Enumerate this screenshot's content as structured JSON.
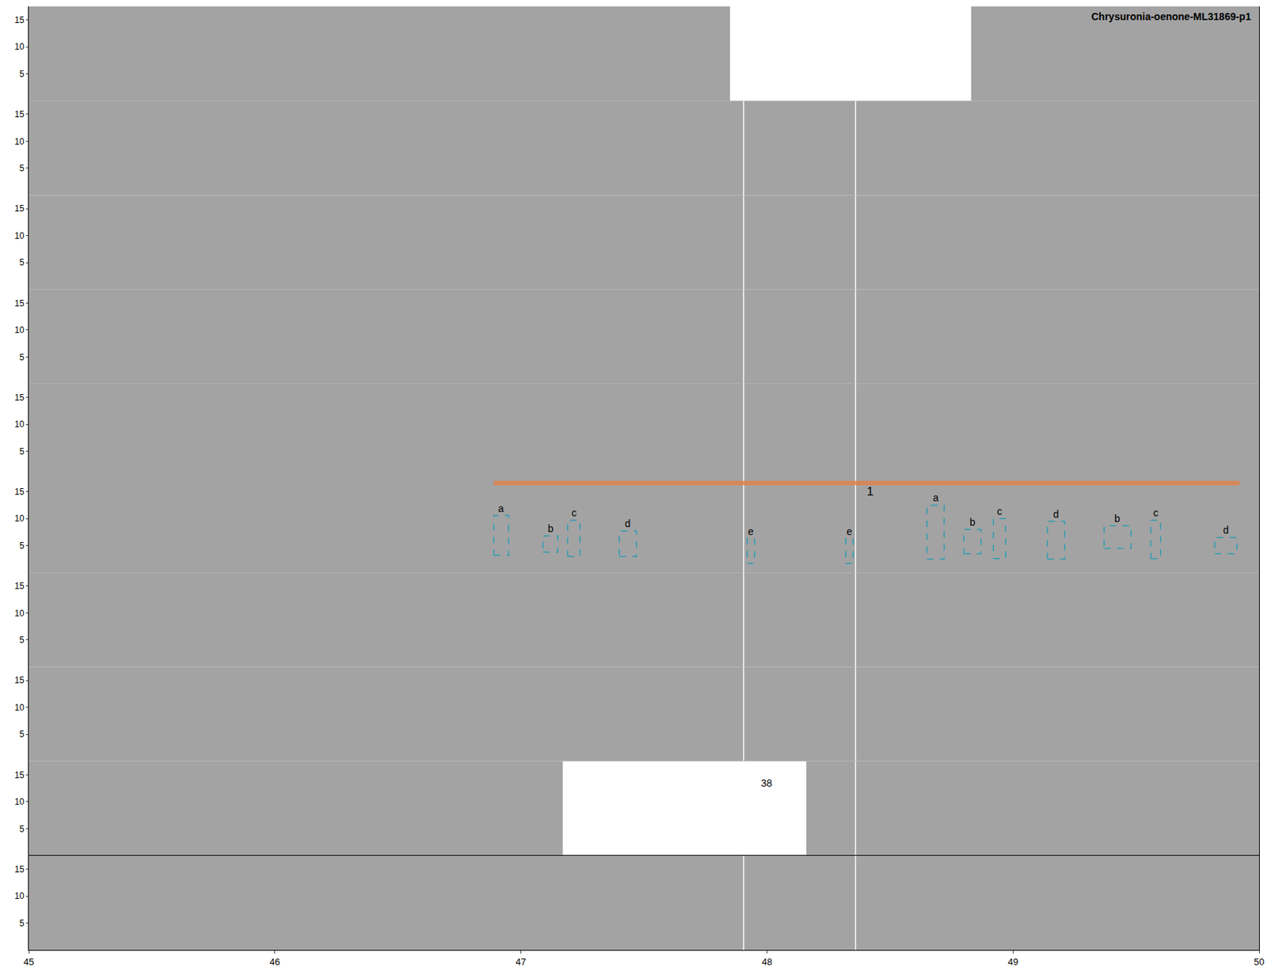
{
  "chart_data": {
    "type": "spectrogram",
    "title": "Chrysuronia-oenone-ML31869-p1",
    "xlim": [
      45,
      50
    ],
    "xticks": [
      45,
      46,
      47,
      48,
      49,
      50
    ],
    "ylim": [
      0,
      17.5
    ],
    "yticks": [
      5,
      10,
      15
    ],
    "grid": false,
    "panels": [
      {
        "separators": [],
        "gaps": [
          [
            47.85,
            48.83
          ]
        ],
        "boxes": [],
        "segments": [],
        "texts": []
      },
      {
        "separators": [
          47.905,
          48.36
        ],
        "gaps": [],
        "boxes": [],
        "segments": [],
        "texts": []
      },
      {
        "separators": [
          47.905,
          48.36
        ],
        "gaps": [],
        "boxes": [],
        "segments": [],
        "texts": []
      },
      {
        "separators": [
          47.905,
          48.36
        ],
        "gaps": [],
        "boxes": [],
        "segments": [],
        "texts": []
      },
      {
        "separators": [
          47.905,
          48.36
        ],
        "gaps": [],
        "boxes": [],
        "segments": [],
        "texts": []
      },
      {
        "separators": [
          47.905,
          48.36
        ],
        "gaps": [],
        "boxes": [
          {
            "label": "a",
            "x": [
              46.89,
              46.95
            ],
            "y": [
              3.2,
              10.6
            ]
          },
          {
            "label": "b",
            "x": [
              47.09,
              47.15
            ],
            "y": [
              3.8,
              6.8
            ]
          },
          {
            "label": "c",
            "x": [
              47.19,
              47.24
            ],
            "y": [
              3.0,
              9.7
            ]
          },
          {
            "label": "d",
            "x": [
              47.4,
              47.47
            ],
            "y": [
              3.0,
              7.7
            ]
          },
          {
            "label": "e",
            "x": [
              47.92,
              47.95
            ],
            "y": [
              1.7,
              6.3
            ]
          },
          {
            "label": "e",
            "x": [
              48.32,
              48.35
            ],
            "y": [
              1.7,
              6.3
            ]
          },
          {
            "label": "a",
            "x": [
              48.65,
              48.72
            ],
            "y": [
              2.5,
              12.5
            ]
          },
          {
            "label": "b",
            "x": [
              48.8,
              48.87
            ],
            "y": [
              3.5,
              8.0
            ]
          },
          {
            "label": "c",
            "x": [
              48.92,
              48.97
            ],
            "y": [
              2.6,
              10.0
            ]
          },
          {
            "label": "d",
            "x": [
              49.14,
              49.21
            ],
            "y": [
              2.5,
              9.5
            ]
          },
          {
            "label": "b",
            "x": [
              49.37,
              49.48
            ],
            "y": [
              4.5,
              8.7
            ]
          },
          {
            "label": "c",
            "x": [
              49.56,
              49.6
            ],
            "y": [
              2.6,
              9.7
            ]
          },
          {
            "label": "d",
            "x": [
              49.82,
              49.91
            ],
            "y": [
              3.5,
              6.5
            ]
          }
        ],
        "segments": [
          {
            "label": "1",
            "x": [
              46.89,
              49.92
            ],
            "y": 16.6,
            "label_x": 48.42,
            "color": "#e0824a"
          }
        ],
        "texts": []
      },
      {
        "separators": [
          47.905,
          48.36
        ],
        "gaps": [],
        "boxes": [],
        "segments": [],
        "texts": []
      },
      {
        "separators": [
          47.905,
          48.36
        ],
        "gaps": [],
        "boxes": [],
        "segments": [],
        "texts": []
      },
      {
        "separators": [
          48.36
        ],
        "gaps": [
          [
            47.17,
            48.16
          ]
        ],
        "boxes": [],
        "segments": [],
        "texts": [
          {
            "text": "38",
            "x": 47.998,
            "y": 13.5
          }
        ]
      },
      {
        "separators": [
          47.905,
          48.36
        ],
        "gaps": [],
        "boxes": [],
        "segments": [],
        "texts": []
      }
    ]
  }
}
